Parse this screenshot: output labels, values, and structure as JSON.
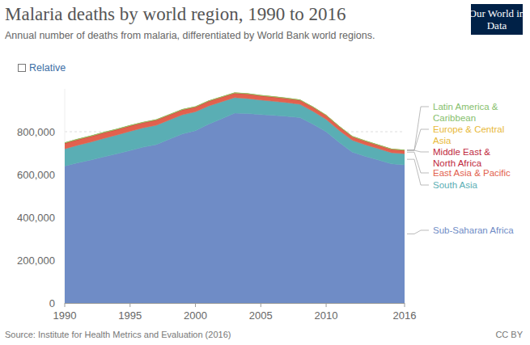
{
  "chart_data": {
    "type": "area",
    "stacked": true,
    "grid": true,
    "title": "Malaria deaths by world region, 1990 to 2016",
    "subtitle": "Annual number of deaths from malaria, differentiated by World Bank world regions.",
    "toggle_label": "Relative",
    "logo": "Our World in Data",
    "source": "Source: Institute for Health Metrics and Evaluation (2016)",
    "license": "CC BY",
    "x": [
      1990,
      1991,
      1992,
      1993,
      1994,
      1995,
      1996,
      1997,
      1998,
      1999,
      2000,
      2001,
      2002,
      2003,
      2004,
      2005,
      2006,
      2007,
      2008,
      2009,
      2010,
      2011,
      2012,
      2013,
      2014,
      2015,
      2016
    ],
    "xlim": [
      1990,
      2016
    ],
    "xticks": [
      1990,
      1995,
      2000,
      2005,
      2010,
      2016
    ],
    "ylim": [
      0,
      1000000
    ],
    "yticks": [
      0,
      {
        "value": 200000,
        "label": "200,000"
      },
      {
        "value": 400000,
        "label": "400,000"
      },
      {
        "value": 600000,
        "label": "600,000"
      },
      {
        "value": 800000,
        "label": "800,000"
      }
    ],
    "series": [
      {
        "name": "Sub-Saharan Africa",
        "color": "#6f8cc6",
        "values": [
          640000,
          655000,
          668000,
          683000,
          697000,
          712000,
          728000,
          740000,
          765000,
          790000,
          805000,
          835000,
          860000,
          887000,
          885000,
          880000,
          876000,
          872000,
          866000,
          835000,
          800000,
          750000,
          705000,
          685000,
          668000,
          650000,
          645000
        ]
      },
      {
        "name": "South Asia",
        "color": "#5aaeb4",
        "values": [
          80000,
          82000,
          84000,
          86000,
          88000,
          90000,
          90000,
          90000,
          90000,
          89000,
          88000,
          85000,
          80000,
          72000,
          70000,
          68000,
          66000,
          64000,
          62000,
          60000,
          58000,
          56000,
          55000,
          54000,
          53000,
          52000,
          52000
        ]
      },
      {
        "name": "East Asia & Pacific",
        "color": "#e2614e",
        "values": [
          25000,
          25000,
          25000,
          25000,
          24000,
          24000,
          23000,
          23000,
          22000,
          22000,
          21000,
          21000,
          20000,
          20000,
          20000,
          19000,
          19000,
          18000,
          18000,
          18000,
          17000,
          17000,
          16000,
          16000,
          15000,
          15000,
          15000
        ]
      },
      {
        "name": "Middle East & North Africa",
        "color": "#c0283d",
        "values": [
          2500,
          2500,
          2500,
          2400,
          2400,
          2400,
          2300,
          2300,
          2300,
          2200,
          2200,
          2200,
          2100,
          2100,
          2100,
          2000,
          2000,
          2000,
          1900,
          1900,
          1800,
          1800,
          1700,
          1700,
          1600,
          1600,
          1500
        ]
      },
      {
        "name": "Europe & Central Asia",
        "color": "#e8b93a",
        "values": [
          100,
          100,
          100,
          100,
          100,
          100,
          100,
          100,
          100,
          100,
          100,
          100,
          100,
          100,
          100,
          100,
          100,
          100,
          100,
          100,
          100,
          100,
          100,
          100,
          100,
          100,
          100
        ]
      },
      {
        "name": "Latin America & Caribbean",
        "color": "#86c06c",
        "values": [
          1500,
          1500,
          1400,
          1400,
          1300,
          1300,
          1200,
          1200,
          1200,
          1100,
          1100,
          1000,
          1000,
          1000,
          900,
          900,
          900,
          800,
          800,
          800,
          700,
          700,
          700,
          700,
          600,
          600,
          600
        ]
      }
    ]
  }
}
